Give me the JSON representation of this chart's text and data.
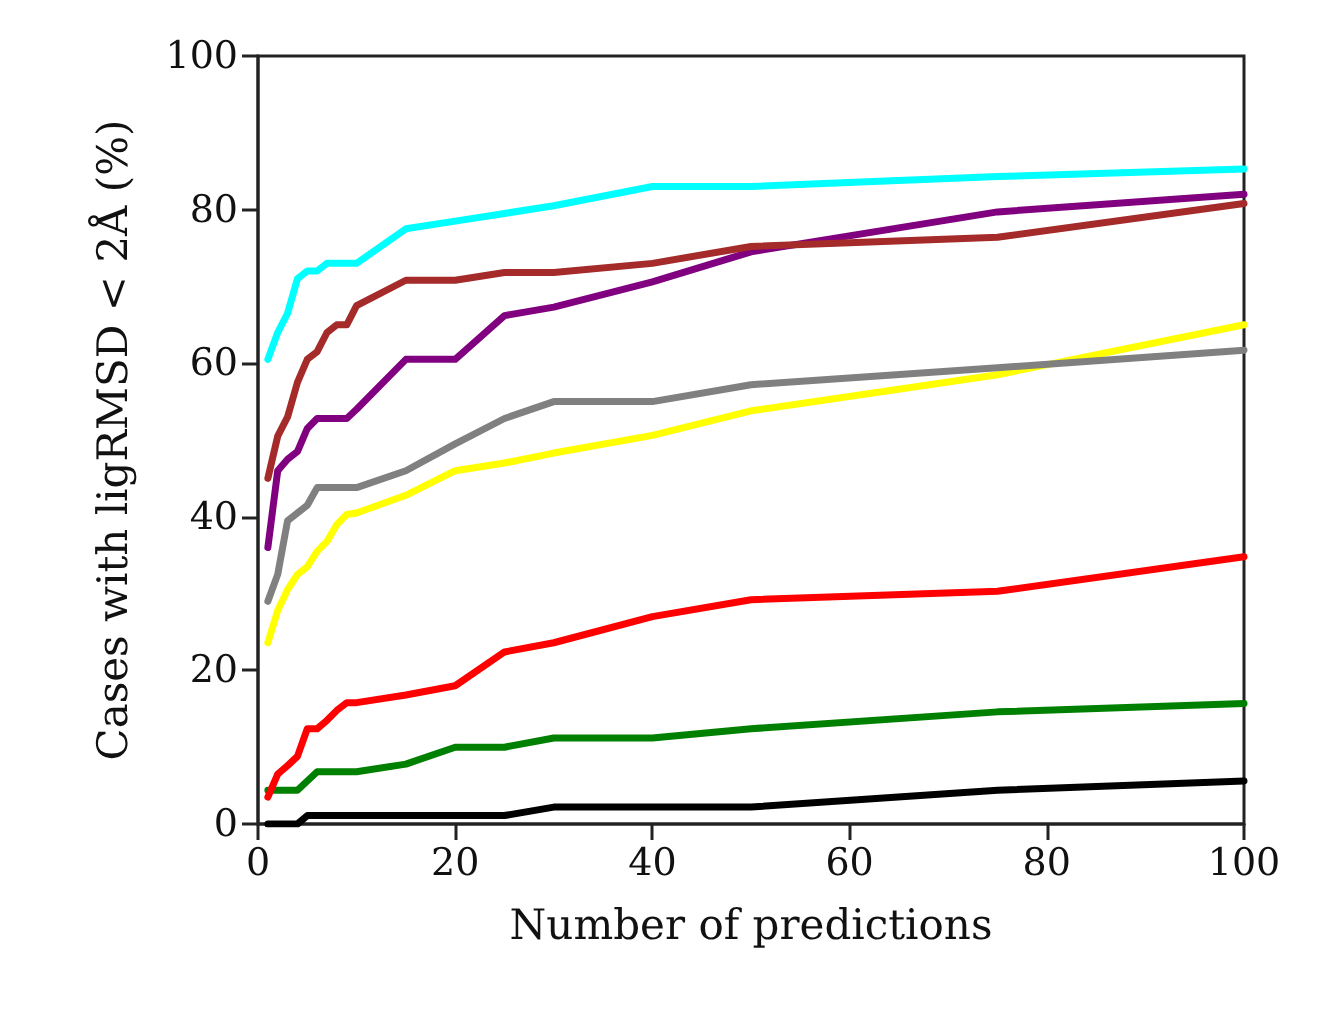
{
  "chart_data": {
    "type": "line",
    "xlabel": "Number of predictions",
    "ylabel": "Cases with ligRMSD < 2Å (%)",
    "x": [
      1,
      2,
      3,
      4,
      5,
      6,
      7,
      8,
      9,
      10,
      15,
      20,
      25,
      30,
      40,
      50,
      75,
      100
    ],
    "xlim": [
      0,
      100
    ],
    "xticks": [
      0,
      20,
      40,
      60,
      80,
      100
    ],
    "ylim": [
      0,
      100
    ],
    "yticks": [
      0,
      20,
      40,
      60,
      80,
      100
    ],
    "grid": false,
    "marker": "none",
    "line_style": "solid",
    "series": [
      {
        "color": "#00ffff",
        "values": [
          60.5,
          64,
          66.5,
          71,
          72,
          72,
          73,
          73,
          73,
          73,
          77.5,
          78.5,
          79.5,
          80.5,
          83,
          83,
          84.3,
          85.3
        ]
      },
      {
        "color": "#a52a2a",
        "values": [
          45,
          50.5,
          53,
          57.5,
          60.5,
          61.5,
          64,
          65,
          65,
          67.5,
          70.8,
          70.8,
          71.8,
          71.8,
          73,
          75.2,
          76.4,
          80.8
        ]
      },
      {
        "color": "#800080",
        "values": [
          36,
          46,
          47.5,
          48.5,
          51.5,
          52.8,
          52.8,
          52.8,
          52.8,
          54,
          60.5,
          60.5,
          66.2,
          67.3,
          70.6,
          74.5,
          79.7,
          82
        ]
      },
      {
        "color": "#808080",
        "values": [
          29,
          32.5,
          39.5,
          40.5,
          41.5,
          43.8,
          43.8,
          43.8,
          43.8,
          43.8,
          46,
          49.5,
          52.8,
          55,
          55,
          57.2,
          59.4,
          61.7
        ]
      },
      {
        "color": "#ffff00",
        "values": [
          23.6,
          27.8,
          30.5,
          32.5,
          33.5,
          35.5,
          36.8,
          39,
          40.3,
          40.5,
          42.8,
          46,
          47,
          48.3,
          50.6,
          53.8,
          58.5,
          65
        ]
      },
      {
        "color": "#ff0000",
        "values": [
          3.5,
          6.5,
          7.6,
          8.8,
          12.4,
          12.4,
          13.5,
          14.8,
          15.8,
          15.8,
          16.8,
          18,
          22.4,
          23.6,
          27,
          29.2,
          30.3,
          34.8
        ]
      },
      {
        "color": "#008000",
        "values": [
          4.4,
          4.4,
          4.4,
          4.4,
          5.6,
          6.8,
          6.8,
          6.8,
          6.8,
          6.8,
          7.8,
          10,
          10,
          11.2,
          11.2,
          12.4,
          14.6,
          15.7
        ]
      },
      {
        "color": "#000000",
        "values": [
          0,
          0,
          0,
          0,
          1.1,
          1.1,
          1.1,
          1.1,
          1.1,
          1.1,
          1.1,
          1.1,
          1.1,
          2.2,
          2.2,
          2.2,
          4.4,
          5.6
        ]
      }
    ]
  }
}
